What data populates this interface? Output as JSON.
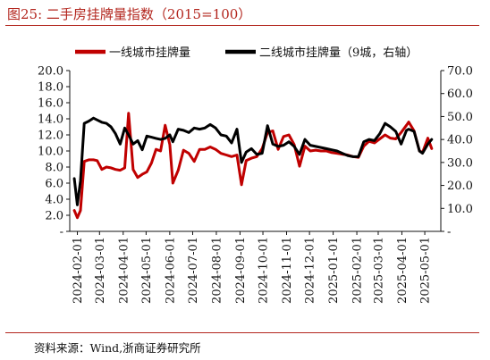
{
  "figure": {
    "title": "图25:   二手房挂牌量指数（2015=100）",
    "source": "资料来源：Wind,浙商证券研究所",
    "accent_color": "#b3261e"
  },
  "chart_data": {
    "type": "line",
    "title": "",
    "xlabel": "",
    "ylabel": "",
    "grid": false,
    "legend_position": "top",
    "x_tick_labels": [
      "2024-02-01",
      "2024-03-01",
      "2024-04-01",
      "2024-05-01",
      "2024-06-01",
      "2024-07-01",
      "2024-08-01",
      "2024-09-01",
      "2024-10-01",
      "2024-11-01",
      "2024-12-01",
      "2025-01-01",
      "2025-02-01",
      "2025-03-01",
      "2025-04-01",
      "2025-05-01"
    ],
    "x_range": [
      "2024-01-22",
      "2025-05-22"
    ],
    "y_left": {
      "range": [
        0,
        20
      ],
      "tick_labels": [
        "-",
        "2.0",
        "4.0",
        "6.0",
        "8.0",
        "10.0",
        "12.0",
        "14.0",
        "16.0",
        "18.0",
        "20.0"
      ]
    },
    "y_right": {
      "range": [
        0,
        70
      ],
      "tick_labels": [
        "-",
        "10.0",
        "20.0",
        "30.0",
        "40.0",
        "50.0",
        "60.0",
        "70.0"
      ]
    },
    "series": [
      {
        "name": "一线城市挂牌量",
        "axis": "left",
        "color": "#c00000",
        "points": [
          [
            "2024-01-28",
            2.6
          ],
          [
            "2024-02-01",
            1.7
          ],
          [
            "2024-02-05",
            2.6
          ],
          [
            "2024-02-10",
            8.7
          ],
          [
            "2024-02-16",
            8.9
          ],
          [
            "2024-02-22",
            8.9
          ],
          [
            "2024-02-27",
            8.8
          ],
          [
            "2024-03-04",
            7.7
          ],
          [
            "2024-03-10",
            8.0
          ],
          [
            "2024-03-16",
            7.9
          ],
          [
            "2024-03-22",
            7.7
          ],
          [
            "2024-03-28",
            7.6
          ],
          [
            "2024-04-03",
            7.9
          ],
          [
            "2024-04-08",
            14.7
          ],
          [
            "2024-04-14",
            7.7
          ],
          [
            "2024-04-20",
            6.7
          ],
          [
            "2024-04-26",
            7.1
          ],
          [
            "2024-05-02",
            7.4
          ],
          [
            "2024-05-08",
            8.5
          ],
          [
            "2024-05-14",
            10.2
          ],
          [
            "2024-05-20",
            10.0
          ],
          [
            "2024-05-26",
            13.2
          ],
          [
            "2024-06-01",
            10.8
          ],
          [
            "2024-06-05",
            6.0
          ],
          [
            "2024-06-12",
            7.6
          ],
          [
            "2024-06-19",
            10.1
          ],
          [
            "2024-06-26",
            9.7
          ],
          [
            "2024-07-03",
            8.7
          ],
          [
            "2024-07-10",
            10.2
          ],
          [
            "2024-07-17",
            10.2
          ],
          [
            "2024-07-24",
            10.5
          ],
          [
            "2024-07-31",
            10.2
          ],
          [
            "2024-08-07",
            9.7
          ],
          [
            "2024-08-14",
            9.5
          ],
          [
            "2024-08-21",
            9.3
          ],
          [
            "2024-08-28",
            9.5
          ],
          [
            "2024-09-03",
            5.8
          ],
          [
            "2024-09-09",
            8.8
          ],
          [
            "2024-09-16",
            9.1
          ],
          [
            "2024-09-23",
            9.3
          ],
          [
            "2024-09-30",
            10.3
          ],
          [
            "2024-10-07",
            12.3
          ],
          [
            "2024-10-14",
            12.5
          ],
          [
            "2024-10-21",
            10.2
          ],
          [
            "2024-10-28",
            11.8
          ],
          [
            "2024-11-04",
            12.0
          ],
          [
            "2024-11-11",
            10.8
          ],
          [
            "2024-11-18",
            8.1
          ],
          [
            "2024-11-25",
            10.6
          ],
          [
            "2024-12-02",
            10.0
          ],
          [
            "2024-12-09",
            10.1
          ],
          [
            "2024-12-16",
            10.0
          ],
          [
            "2024-12-23",
            10.0
          ],
          [
            "2024-12-30",
            9.8
          ],
          [
            "2025-01-06",
            9.7
          ],
          [
            "2025-01-13",
            9.6
          ],
          [
            "2025-01-20",
            9.5
          ],
          [
            "2025-01-27",
            9.3
          ],
          [
            "2025-02-03",
            9.2
          ],
          [
            "2025-02-10",
            10.6
          ],
          [
            "2025-02-17",
            11.2
          ],
          [
            "2025-02-24",
            11.0
          ],
          [
            "2025-03-03",
            11.5
          ],
          [
            "2025-03-10",
            12.0
          ],
          [
            "2025-03-17",
            11.6
          ],
          [
            "2025-03-24",
            11.5
          ],
          [
            "2025-03-31",
            12.3
          ],
          [
            "2025-04-07",
            13.2
          ],
          [
            "2025-04-10",
            13.6
          ],
          [
            "2025-04-17",
            12.5
          ],
          [
            "2025-04-24",
            10.0
          ],
          [
            "2025-04-28",
            9.8
          ],
          [
            "2025-05-05",
            11.6
          ],
          [
            "2025-05-10",
            10.3
          ]
        ]
      },
      {
        "name": "二线城市挂牌量（9城，右轴）",
        "axis": "right",
        "color": "#000000",
        "points": [
          [
            "2024-01-28",
            23.0
          ],
          [
            "2024-02-01",
            11.5
          ],
          [
            "2024-02-05",
            22.0
          ],
          [
            "2024-02-10",
            47.0
          ],
          [
            "2024-02-16",
            48.0
          ],
          [
            "2024-02-22",
            49.3
          ],
          [
            "2024-02-27",
            48.5
          ],
          [
            "2024-03-04",
            47.5
          ],
          [
            "2024-03-10",
            47.0
          ],
          [
            "2024-03-16",
            45.5
          ],
          [
            "2024-03-22",
            42.5
          ],
          [
            "2024-03-28",
            38.0
          ],
          [
            "2024-04-03",
            45.0
          ],
          [
            "2024-04-08",
            42.0
          ],
          [
            "2024-04-14",
            38.0
          ],
          [
            "2024-04-20",
            39.5
          ],
          [
            "2024-04-26",
            35.5
          ],
          [
            "2024-05-02",
            41.5
          ],
          [
            "2024-05-08",
            41.0
          ],
          [
            "2024-05-14",
            40.5
          ],
          [
            "2024-05-20",
            40.0
          ],
          [
            "2024-05-26",
            40.5
          ],
          [
            "2024-06-01",
            42.0
          ],
          [
            "2024-06-05",
            39.0
          ],
          [
            "2024-06-12",
            44.5
          ],
          [
            "2024-06-19",
            44.0
          ],
          [
            "2024-06-26",
            43.0
          ],
          [
            "2024-07-03",
            45.0
          ],
          [
            "2024-07-10",
            44.5
          ],
          [
            "2024-07-17",
            45.0
          ],
          [
            "2024-07-24",
            46.5
          ],
          [
            "2024-07-31",
            45.0
          ],
          [
            "2024-08-07",
            42.0
          ],
          [
            "2024-08-14",
            41.5
          ],
          [
            "2024-08-21",
            38.5
          ],
          [
            "2024-08-28",
            44.5
          ],
          [
            "2024-09-03",
            30.0
          ],
          [
            "2024-09-09",
            34.5
          ],
          [
            "2024-09-16",
            36.0
          ],
          [
            "2024-09-23",
            33.5
          ],
          [
            "2024-09-30",
            34.0
          ],
          [
            "2024-10-07",
            46.0
          ],
          [
            "2024-10-14",
            38.0
          ],
          [
            "2024-10-21",
            37.0
          ],
          [
            "2024-10-28",
            37.5
          ],
          [
            "2024-11-04",
            39.0
          ],
          [
            "2024-11-11",
            37.0
          ],
          [
            "2024-11-18",
            33.5
          ],
          [
            "2024-11-25",
            40.0
          ],
          [
            "2024-12-02",
            37.5
          ],
          [
            "2024-12-09",
            37.0
          ],
          [
            "2024-12-16",
            36.5
          ],
          [
            "2024-12-23",
            36.0
          ],
          [
            "2024-12-30",
            35.5
          ],
          [
            "2025-01-06",
            35.0
          ],
          [
            "2025-01-13",
            34.0
          ],
          [
            "2025-01-20",
            33.0
          ],
          [
            "2025-01-27",
            32.5
          ],
          [
            "2025-02-03",
            32.5
          ],
          [
            "2025-02-10",
            39.0
          ],
          [
            "2025-02-17",
            40.0
          ],
          [
            "2025-02-24",
            39.5
          ],
          [
            "2025-03-03",
            42.5
          ],
          [
            "2025-03-10",
            47.0
          ],
          [
            "2025-03-17",
            45.5
          ],
          [
            "2025-03-24",
            43.5
          ],
          [
            "2025-03-31",
            38.0
          ],
          [
            "2025-04-07",
            44.0
          ],
          [
            "2025-04-10",
            44.5
          ],
          [
            "2025-04-17",
            43.5
          ],
          [
            "2025-04-24",
            35.0
          ],
          [
            "2025-04-28",
            34.0
          ],
          [
            "2025-05-05",
            38.0
          ],
          [
            "2025-05-10",
            40.0
          ]
        ]
      }
    ]
  }
}
